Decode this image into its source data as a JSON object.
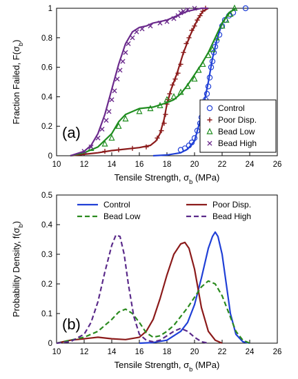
{
  "chart_data": [
    {
      "type": "line",
      "panel_label": "(a)",
      "xlabel": "Tensile Strength, σb (MPa)",
      "ylabel": "Fraction Failed, F(σb)",
      "xlim": [
        10,
        26
      ],
      "ylim": [
        0,
        1
      ],
      "x_ticks": [
        "10",
        "12",
        "14",
        "16",
        "18",
        "20",
        "22",
        "24",
        "26"
      ],
      "y_ticks": [
        "0",
        "0.2",
        "0.4",
        "0.6",
        "0.8",
        "1"
      ],
      "legend_placement": "bottom-right",
      "series": [
        {
          "name": "Control",
          "color": "#1f3fd6",
          "marker": "circle",
          "fit_x": [
            17.0,
            18.0,
            19.0,
            19.5,
            20.0,
            20.5,
            21.0,
            21.3,
            21.6,
            22.0,
            22.5,
            23.0
          ],
          "fit_y": [
            0.0,
            0.005,
            0.02,
            0.045,
            0.1,
            0.27,
            0.5,
            0.66,
            0.78,
            0.9,
            0.97,
            1.0
          ],
          "points_x": [
            19.0,
            19.3,
            19.6,
            19.8,
            20.0,
            20.2,
            20.4,
            20.5,
            20.6,
            20.7,
            20.8,
            20.9,
            21.0,
            21.1,
            21.2,
            21.3,
            21.4,
            21.5,
            21.6,
            21.8,
            22.0,
            22.2,
            22.5,
            22.8,
            23.7
          ],
          "points_y": [
            0.04,
            0.05,
            0.07,
            0.09,
            0.12,
            0.17,
            0.22,
            0.26,
            0.3,
            0.34,
            0.38,
            0.42,
            0.47,
            0.53,
            0.6,
            0.64,
            0.7,
            0.74,
            0.78,
            0.82,
            0.88,
            0.92,
            0.95,
            0.97,
            1.0
          ]
        },
        {
          "name": "Poor Disp.",
          "color": "#8b1a1a",
          "marker": "plus",
          "fit_x": [
            11.0,
            12.0,
            13.0,
            14.0,
            15.0,
            16.0,
            16.8,
            17.2,
            17.5,
            17.8,
            18.0,
            18.3,
            18.7,
            19.2,
            19.7,
            20.2,
            20.6,
            21.0
          ],
          "fit_y": [
            0.0,
            0.01,
            0.02,
            0.035,
            0.045,
            0.055,
            0.07,
            0.1,
            0.15,
            0.25,
            0.35,
            0.45,
            0.55,
            0.7,
            0.82,
            0.92,
            0.98,
            1.0
          ],
          "points_x": [
            13.5,
            14.5,
            15.5,
            16.5,
            17.3,
            17.6,
            17.8,
            17.9,
            18.0,
            18.1,
            18.2,
            18.4,
            18.6,
            18.8,
            19.0,
            19.2,
            19.4,
            19.6,
            19.8,
            20.0,
            20.2,
            20.4,
            20.6,
            20.8
          ],
          "points_y": [
            0.03,
            0.04,
            0.05,
            0.06,
            0.12,
            0.17,
            0.22,
            0.28,
            0.35,
            0.38,
            0.42,
            0.48,
            0.52,
            0.56,
            0.62,
            0.7,
            0.76,
            0.8,
            0.85,
            0.88,
            0.92,
            0.95,
            0.98,
            1.0
          ]
        },
        {
          "name": "Bead Low",
          "color": "#1e8c1e",
          "marker": "triangle",
          "fit_x": [
            11.0,
            12.0,
            13.0,
            14.0,
            14.5,
            15.0,
            16.0,
            17.0,
            18.0,
            18.5,
            19.0,
            19.5,
            20.0,
            20.5,
            21.0,
            21.5,
            22.0,
            22.5,
            23.0
          ],
          "fit_y": [
            0.0,
            0.02,
            0.06,
            0.15,
            0.23,
            0.28,
            0.32,
            0.33,
            0.36,
            0.38,
            0.42,
            0.48,
            0.55,
            0.62,
            0.7,
            0.8,
            0.9,
            0.97,
            1.0
          ],
          "points_x": [
            12.5,
            13.5,
            14.0,
            14.5,
            15.0,
            16.0,
            16.8,
            17.5,
            18.0,
            18.5,
            19.0,
            19.5,
            20.0,
            20.3,
            20.6,
            21.0,
            21.3,
            21.6,
            22.0,
            22.3,
            22.6,
            22.9
          ],
          "points_y": [
            0.05,
            0.08,
            0.12,
            0.2,
            0.25,
            0.3,
            0.32,
            0.34,
            0.38,
            0.4,
            0.43,
            0.47,
            0.52,
            0.58,
            0.62,
            0.68,
            0.72,
            0.8,
            0.88,
            0.92,
            0.96,
            1.0
          ]
        },
        {
          "name": "Bead High",
          "color": "#6b2a8c",
          "marker": "x",
          "fit_x": [
            11.0,
            12.0,
            12.5,
            13.0,
            13.5,
            14.0,
            14.5,
            15.0,
            15.5,
            16.0,
            16.5,
            17.0,
            17.5,
            18.0,
            18.5,
            19.0,
            19.5,
            20.0,
            20.5,
            21.0
          ],
          "fit_y": [
            0.0,
            0.03,
            0.07,
            0.15,
            0.28,
            0.45,
            0.62,
            0.76,
            0.84,
            0.87,
            0.88,
            0.9,
            0.91,
            0.92,
            0.94,
            0.96,
            0.98,
            0.99,
            1.0,
            1.0
          ],
          "points_x": [
            12.0,
            12.5,
            13.0,
            13.3,
            13.6,
            13.8,
            14.0,
            14.2,
            14.4,
            14.6,
            14.8,
            15.0,
            15.2,
            15.5,
            15.8,
            16.2,
            16.8,
            17.5,
            18.0,
            18.5,
            18.8,
            19.0,
            19.2,
            19.5,
            20.0
          ],
          "points_y": [
            0.03,
            0.06,
            0.12,
            0.18,
            0.24,
            0.3,
            0.38,
            0.44,
            0.52,
            0.58,
            0.64,
            0.7,
            0.76,
            0.8,
            0.84,
            0.86,
            0.88,
            0.9,
            0.91,
            0.93,
            0.95,
            0.97,
            0.98,
            0.99,
            1.0
          ]
        }
      ]
    },
    {
      "type": "line",
      "panel_label": "(b)",
      "xlabel": "Tensile Strength, σb (MPa)",
      "ylabel": "Probability Density, f(σb)",
      "xlim": [
        10,
        26
      ],
      "ylim": [
        0,
        0.5
      ],
      "x_ticks": [
        "10",
        "12",
        "14",
        "16",
        "18",
        "20",
        "22",
        "24",
        "26"
      ],
      "y_ticks": [
        "0",
        "0.1",
        "0.2",
        "0.3",
        "0.4",
        "0.5"
      ],
      "legend_placement": "top",
      "series": [
        {
          "name": "Control",
          "color": "#1f3fd6",
          "dash": "solid",
          "x": [
            16.0,
            17.0,
            18.0,
            19.0,
            19.5,
            20.0,
            20.5,
            21.0,
            21.3,
            21.5,
            21.7,
            22.0,
            22.3,
            22.6,
            23.0,
            23.5,
            24.0
          ],
          "y": [
            0.0,
            0.002,
            0.01,
            0.04,
            0.07,
            0.13,
            0.22,
            0.32,
            0.36,
            0.375,
            0.36,
            0.3,
            0.2,
            0.1,
            0.03,
            0.005,
            0.0
          ]
        },
        {
          "name": "Poor Disp.",
          "color": "#8b1a1a",
          "dash": "solid",
          "x": [
            10.0,
            11.0,
            12.0,
            13.0,
            14.0,
            15.0,
            16.0,
            16.5,
            17.0,
            17.5,
            18.0,
            18.5,
            19.0,
            19.3,
            19.6,
            20.0,
            20.5,
            21.0,
            21.5,
            22.0
          ],
          "y": [
            0.0,
            0.01,
            0.015,
            0.02,
            0.015,
            0.012,
            0.02,
            0.04,
            0.08,
            0.15,
            0.23,
            0.3,
            0.335,
            0.34,
            0.32,
            0.25,
            0.12,
            0.04,
            0.01,
            0.0
          ]
        },
        {
          "name": "Bead Low",
          "color": "#2a8a1e",
          "dash": "dashed",
          "x": [
            10.0,
            11.0,
            12.0,
            13.0,
            14.0,
            14.5,
            15.0,
            15.5,
            16.0,
            16.5,
            17.0,
            17.5,
            18.0,
            18.5,
            19.0,
            19.5,
            20.0,
            20.5,
            21.0,
            21.5,
            22.0,
            22.5,
            23.0,
            23.5,
            24.0
          ],
          "y": [
            0.0,
            0.01,
            0.02,
            0.04,
            0.08,
            0.105,
            0.115,
            0.1,
            0.07,
            0.035,
            0.02,
            0.025,
            0.04,
            0.06,
            0.09,
            0.12,
            0.155,
            0.19,
            0.21,
            0.2,
            0.16,
            0.1,
            0.04,
            0.01,
            0.0
          ]
        },
        {
          "name": "Bead High",
          "color": "#5a2a8a",
          "dash": "dashed",
          "x": [
            10.0,
            11.0,
            12.0,
            12.5,
            13.0,
            13.5,
            14.0,
            14.3,
            14.6,
            14.9,
            15.2,
            15.6,
            16.0,
            16.5,
            17.0,
            17.5,
            18.0,
            18.5,
            19.0,
            19.5,
            20.0,
            20.5,
            21.0
          ],
          "y": [
            0.0,
            0.005,
            0.03,
            0.07,
            0.14,
            0.24,
            0.33,
            0.365,
            0.36,
            0.3,
            0.2,
            0.09,
            0.03,
            0.01,
            0.005,
            0.01,
            0.025,
            0.04,
            0.05,
            0.04,
            0.02,
            0.005,
            0.0
          ]
        }
      ]
    }
  ]
}
